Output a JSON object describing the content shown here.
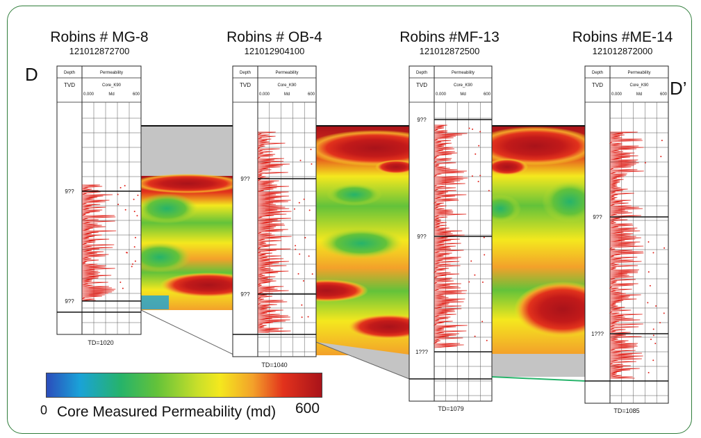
{
  "section": {
    "start_label": "D",
    "end_label": "D’"
  },
  "wells": [
    {
      "name": "Robins # MG-8",
      "api": "121012872700",
      "td": "TD=1020",
      "depth_ticks": [
        "9??",
        "9??"
      ]
    },
    {
      "name": "Robins # OB-4",
      "api": "121012904100",
      "td": "TD=1040",
      "depth_ticks": [
        "9??",
        "9??"
      ]
    },
    {
      "name": "Robins #MF-13",
      "api": "121012872500",
      "td": "TD=1079",
      "depth_ticks": [
        "9??",
        "9??",
        "1???"
      ]
    },
    {
      "name": "Robins #ME-14",
      "api": "121012872000",
      "td": "TD=1085",
      "depth_ticks": [
        "9??",
        "1???"
      ]
    }
  ],
  "track_header": {
    "depth_col": "Depth",
    "perm_col": "Permeability",
    "depth_unit": "TVD",
    "curve": "Core_K90",
    "scale_min": "0.000",
    "scale_unit": "Md",
    "scale_max": "600"
  },
  "legend": {
    "min": "0",
    "max": "600",
    "title": "Core Measured Permeability (md)"
  },
  "colors": {
    "frame": "#2f7d3a",
    "log_curve": "#e0221a",
    "low": "#2b4dbb",
    "mid": "#f4e81e",
    "high": "#a9131a",
    "gray_fill": "#c4c4c4"
  }
}
